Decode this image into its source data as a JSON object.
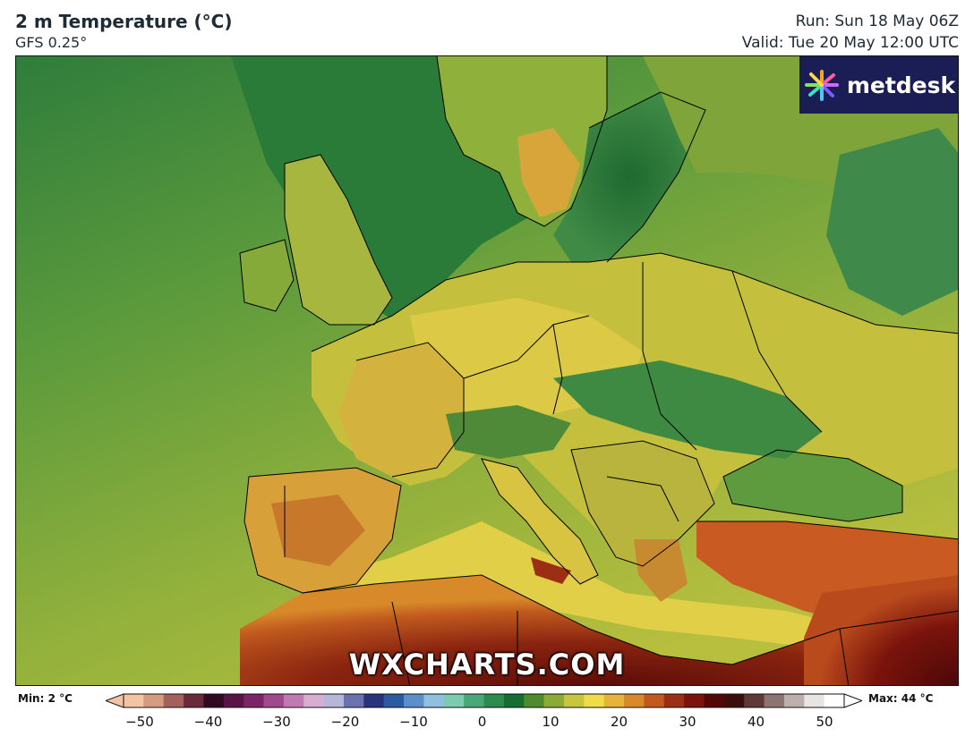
{
  "header": {
    "title": "2 m Temperature (°C)",
    "model": "GFS 0.25°",
    "run": "Run: Sun 18 May 06Z",
    "valid": "Valid: Tue 20 May 12:00 UTC"
  },
  "logo": {
    "text": "metdesk",
    "icon": "spark-flower-icon"
  },
  "watermark": "WXCHARTS.COM",
  "legend": {
    "min_label": "Min: 2 °C",
    "max_label": "Max: 44 °C",
    "ticks": [
      "−50",
      "−40",
      "−30",
      "−20",
      "−10",
      "0",
      "10",
      "20",
      "30",
      "40",
      "50"
    ],
    "range": [
      -50,
      50
    ],
    "colors": [
      "#f3c3a3",
      "#d49a82",
      "#a4605a",
      "#6b2a3a",
      "#2f0b22",
      "#5b1245",
      "#7d2467",
      "#a04a8e",
      "#c07ab0",
      "#d8aed0",
      "#b6b6d8",
      "#6a72b0",
      "#27337a",
      "#2c5aa0",
      "#5b8fc8",
      "#8fc0e0",
      "#7ccbb0",
      "#4aa878",
      "#2f8a4e",
      "#176c2f",
      "#4f8a2c",
      "#8caa36",
      "#c8c63c",
      "#eedc48",
      "#e6b438",
      "#d88a2a",
      "#c05a1e",
      "#9c2e14",
      "#7a130c",
      "#520806",
      "#3a0e0a",
      "#5e3a36",
      "#8c7470",
      "#bcb0ac",
      "#e8e4e2",
      "#ffffff"
    ]
  },
  "colors": {
    "ocean_cool": "#3f8a45",
    "ocean_mid": "#7fa83a",
    "land_warm": "#e3d44b",
    "desert_hot": "#7a1a0c",
    "border": "#000000",
    "logo_bg": "#1b1e55"
  }
}
